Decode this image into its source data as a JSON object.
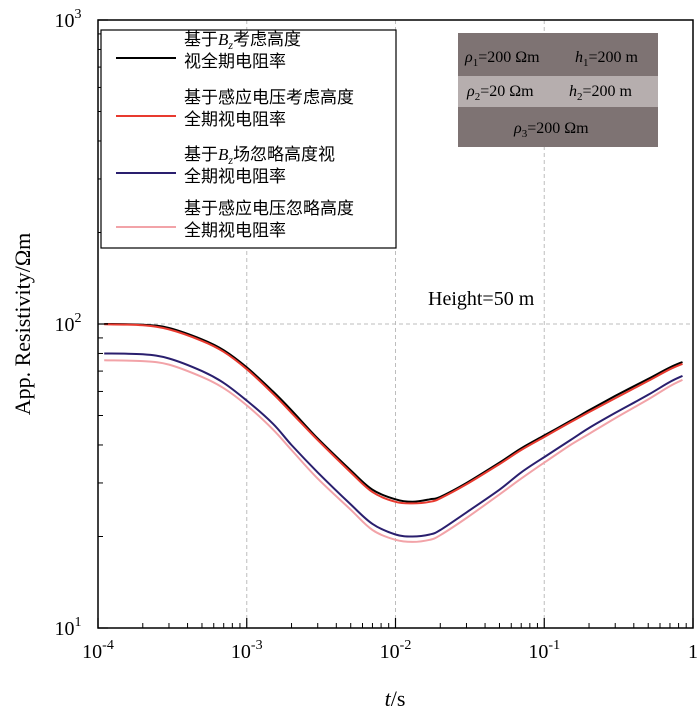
{
  "chart_data": {
    "type": "line",
    "xscale": "log",
    "yscale": "log",
    "xlim": [
      0.0001,
      1
    ],
    "ylim": [
      10,
      1000
    ],
    "xticks": [
      {
        "value": 0.0001,
        "base": "10",
        "exp": "-4"
      },
      {
        "value": 0.001,
        "base": "10",
        "exp": "-3"
      },
      {
        "value": 0.01,
        "base": "10",
        "exp": "-2"
      },
      {
        "value": 0.1,
        "base": "10",
        "exp": "-1"
      },
      {
        "value": 1,
        "base": "1",
        "exp": ""
      }
    ],
    "yticks": [
      {
        "value": 10,
        "base": "10",
        "exp": "1"
      },
      {
        "value": 100,
        "base": "10",
        "exp": "2"
      },
      {
        "value": 1000,
        "base": "10",
        "exp": "3"
      }
    ],
    "xlabel": {
      "italic": "t",
      "rest": "/s"
    },
    "ylabel": "App. Resistivity/Ωm",
    "grid": true,
    "annotation": "Height=50 m",
    "model": {
      "layer1": {
        "rho": "ρ",
        "rho_sub": "1",
        "rho_val": "=200 Ωm",
        "h": "h",
        "h_sub": "1",
        "h_val": "=200 m",
        "color": "#7e7373"
      },
      "layer2": {
        "rho": "ρ",
        "rho_sub": "2",
        "rho_val": "=20 Ωm",
        "h": "h",
        "h_sub": "2",
        "h_val": "=200 m",
        "color": "#b6aeae"
      },
      "layer3": {
        "rho": "ρ",
        "rho_sub": "3",
        "rho_val": "=200 Ωm",
        "color": "#7e7373"
      }
    },
    "legend_position": "top-left",
    "series": [
      {
        "name": "基于Bz考虑高度视全期电阻率",
        "legend": [
          {
            "parts": [
              "基于",
              "B",
              "z",
              "考虑高度"
            ]
          },
          {
            "parts": [
              "视全期电阻率"
            ]
          }
        ],
        "color": "#000000",
        "x": [
          0.00011,
          0.0002,
          0.0003,
          0.0005,
          0.0007,
          0.001,
          0.0015,
          0.002,
          0.003,
          0.005,
          0.007,
          0.01,
          0.013,
          0.017,
          0.02,
          0.03,
          0.05,
          0.07,
          0.1,
          0.15,
          0.2,
          0.3,
          0.5,
          0.7,
          0.85
        ],
        "values": [
          100,
          99.5,
          97,
          89,
          82,
          72,
          60,
          52,
          42,
          33,
          28.5,
          26.5,
          26,
          26.5,
          27,
          30,
          35,
          39,
          43,
          48,
          52,
          58,
          66,
          72,
          75
        ]
      },
      {
        "name": "基于感应电压考虑高度全期视电阻率",
        "legend": [
          {
            "parts": [
              "基于感应电压考虑高度"
            ]
          },
          {
            "parts": [
              "全期视电阻率"
            ]
          }
        ],
        "color": "#e83a2f",
        "x": [
          0.00011,
          0.0002,
          0.0003,
          0.0005,
          0.0007,
          0.001,
          0.0015,
          0.002,
          0.003,
          0.005,
          0.007,
          0.01,
          0.013,
          0.017,
          0.02,
          0.03,
          0.05,
          0.07,
          0.1,
          0.15,
          0.2,
          0.3,
          0.5,
          0.7,
          0.85
        ],
        "values": [
          99.8,
          99,
          96,
          88,
          81,
          71,
          59,
          51,
          41.5,
          32.5,
          28,
          26,
          25.7,
          26,
          26.7,
          29.7,
          34.6,
          38.5,
          42.5,
          47.5,
          51.3,
          57,
          65,
          71,
          74
        ]
      },
      {
        "name": "基于Bz场忽略高度视全期视电阻率",
        "legend": [
          {
            "parts": [
              "基于",
              "B",
              "z",
              "场忽略高度视"
            ]
          },
          {
            "parts": [
              "全期视电阻率"
            ]
          }
        ],
        "color": "#2a1f6e",
        "x": [
          0.00011,
          0.0002,
          0.0003,
          0.0005,
          0.0007,
          0.001,
          0.0015,
          0.002,
          0.003,
          0.005,
          0.007,
          0.01,
          0.013,
          0.017,
          0.02,
          0.03,
          0.05,
          0.07,
          0.1,
          0.15,
          0.2,
          0.3,
          0.5,
          0.7,
          0.85
        ],
        "values": [
          80,
          79.5,
          77,
          70,
          64,
          56,
          47,
          40,
          32.5,
          25.5,
          22,
          20.3,
          20,
          20.3,
          21,
          24,
          28.5,
          32.5,
          36.5,
          41.5,
          45.5,
          51,
          58.5,
          64.5,
          67.5
        ]
      },
      {
        "name": "基于感应电压忽略高度全期视电阻率",
        "legend": [
          {
            "parts": [
              "基于感应电压忽略高度"
            ]
          },
          {
            "parts": [
              "全期视电阻率"
            ]
          }
        ],
        "color": "#f2a3a8",
        "x": [
          0.00011,
          0.0002,
          0.0003,
          0.0005,
          0.0007,
          0.001,
          0.0015,
          0.002,
          0.003,
          0.005,
          0.007,
          0.01,
          0.013,
          0.017,
          0.02,
          0.03,
          0.05,
          0.07,
          0.1,
          0.15,
          0.2,
          0.3,
          0.5,
          0.7,
          0.85
        ],
        "values": [
          76,
          75.5,
          73.5,
          67,
          61.5,
          54,
          45,
          38.5,
          31,
          24.5,
          21,
          19.5,
          19.2,
          19.5,
          20.2,
          23,
          27.5,
          31,
          35,
          40,
          43.5,
          49,
          56.5,
          62.5,
          65.5
        ]
      }
    ]
  }
}
